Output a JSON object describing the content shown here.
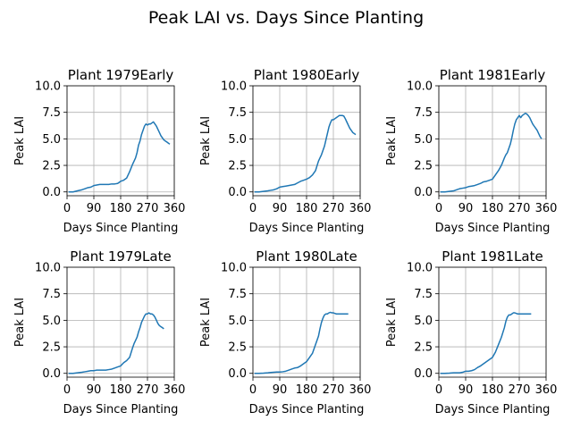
{
  "figure_title": "Peak LAI vs. Days Since Planting",
  "colors": {
    "series": "#1f77b4",
    "grid": "#b0b0b0"
  },
  "chart_data": [
    {
      "type": "line",
      "title": "Plant 1979Early",
      "xlabel": "Days Since Planting",
      "ylabel": "Peak LAI",
      "xlim": [
        0,
        360
      ],
      "ylim": [
        0,
        10
      ],
      "grid": true,
      "xticks": [
        "0",
        "90",
        "180",
        "270",
        "360"
      ],
      "yticks": [
        "0.0",
        "2.5",
        "5.0",
        "7.5",
        "10.0"
      ],
      "series": [
        {
          "x": [
            5,
            20,
            35,
            50,
            60,
            70,
            80,
            90,
            100,
            110,
            120,
            130,
            140,
            150,
            160,
            170,
            180,
            190,
            200,
            210,
            220,
            225,
            230,
            235,
            240,
            245,
            250,
            255,
            260,
            265,
            270,
            275,
            280,
            285,
            290,
            295,
            300,
            305,
            310,
            315,
            320,
            325,
            330,
            335,
            340,
            345
          ],
          "y": [
            0.0,
            0.0,
            0.1,
            0.2,
            0.3,
            0.4,
            0.45,
            0.6,
            0.65,
            0.7,
            0.7,
            0.7,
            0.7,
            0.75,
            0.75,
            0.8,
            1.0,
            1.1,
            1.3,
            1.9,
            2.6,
            2.9,
            3.2,
            3.7,
            4.4,
            4.8,
            5.4,
            5.8,
            6.2,
            6.4,
            6.3,
            6.4,
            6.4,
            6.5,
            6.6,
            6.4,
            6.2,
            5.9,
            5.6,
            5.3,
            5.1,
            4.9,
            4.8,
            4.7,
            4.6,
            4.5
          ]
        }
      ]
    },
    {
      "type": "line",
      "title": "Plant 1980Early",
      "xlabel": "Days Since Planting",
      "ylabel": "Peak LAI",
      "xlim": [
        0,
        360
      ],
      "ylim": [
        0,
        10
      ],
      "grid": true,
      "xticks": [
        "0",
        "90",
        "180",
        "270",
        "360"
      ],
      "yticks": [
        "0.0",
        "2.5",
        "5.0",
        "7.5",
        "10.0"
      ],
      "series": [
        {
          "x": [
            5,
            20,
            35,
            50,
            60,
            70,
            80,
            90,
            100,
            110,
            120,
            130,
            140,
            150,
            160,
            170,
            180,
            190,
            200,
            210,
            220,
            225,
            230,
            235,
            240,
            245,
            250,
            255,
            260,
            265,
            270,
            275,
            280,
            285,
            290,
            295,
            300,
            305,
            310,
            315,
            320,
            325,
            330,
            335,
            340,
            345
          ],
          "y": [
            0.0,
            0.0,
            0.05,
            0.1,
            0.15,
            0.2,
            0.3,
            0.45,
            0.5,
            0.55,
            0.6,
            0.65,
            0.7,
            0.85,
            1.0,
            1.1,
            1.2,
            1.35,
            1.6,
            2.0,
            2.9,
            3.2,
            3.5,
            3.9,
            4.3,
            4.9,
            5.5,
            6.1,
            6.5,
            6.8,
            6.8,
            6.9,
            7.0,
            7.1,
            7.2,
            7.2,
            7.2,
            7.15,
            6.9,
            6.6,
            6.3,
            6.0,
            5.8,
            5.6,
            5.5,
            5.4
          ]
        }
      ]
    },
    {
      "type": "line",
      "title": "Plant 1981Early",
      "xlabel": "Days Since Planting",
      "ylabel": "Peak LAI",
      "xlim": [
        0,
        360
      ],
      "ylim": [
        0,
        10
      ],
      "grid": true,
      "xticks": [
        "0",
        "90",
        "180",
        "270",
        "360"
      ],
      "yticks": [
        "0.0",
        "2.5",
        "5.0",
        "7.5",
        "10.0"
      ],
      "series": [
        {
          "x": [
            5,
            20,
            35,
            50,
            60,
            70,
            80,
            90,
            100,
            110,
            120,
            130,
            140,
            150,
            160,
            170,
            180,
            190,
            200,
            210,
            220,
            225,
            230,
            235,
            240,
            245,
            250,
            255,
            260,
            265,
            270,
            275,
            280,
            285,
            290,
            295,
            300,
            305,
            310,
            315,
            320,
            325,
            330,
            335,
            340,
            345
          ],
          "y": [
            0.0,
            0.0,
            0.05,
            0.1,
            0.2,
            0.3,
            0.35,
            0.4,
            0.5,
            0.55,
            0.6,
            0.7,
            0.8,
            0.95,
            1.0,
            1.1,
            1.2,
            1.6,
            2.0,
            2.5,
            3.2,
            3.5,
            3.7,
            4.1,
            4.5,
            5.1,
            5.8,
            6.4,
            6.8,
            7.0,
            7.2,
            7.0,
            7.2,
            7.3,
            7.4,
            7.35,
            7.2,
            7.0,
            6.7,
            6.4,
            6.2,
            6.0,
            5.8,
            5.5,
            5.2,
            5.0
          ]
        }
      ]
    },
    {
      "type": "line",
      "title": "Plant 1979Late",
      "xlabel": "Days Since Planting",
      "ylabel": "Peak LAI",
      "xlim": [
        0,
        360
      ],
      "ylim": [
        0,
        10
      ],
      "grid": true,
      "xticks": [
        "0",
        "90",
        "180",
        "270",
        "360"
      ],
      "yticks": [
        "0.0",
        "2.5",
        "5.0",
        "7.5",
        "10.0"
      ],
      "series": [
        {
          "x": [
            5,
            20,
            35,
            50,
            60,
            70,
            80,
            90,
            100,
            110,
            120,
            130,
            140,
            150,
            160,
            170,
            180,
            190,
            200,
            210,
            220,
            225,
            230,
            235,
            240,
            245,
            250,
            255,
            260,
            265,
            270,
            275,
            280,
            285,
            290,
            295,
            300,
            305,
            310,
            315,
            320,
            325
          ],
          "y": [
            0.0,
            0.0,
            0.05,
            0.1,
            0.15,
            0.2,
            0.25,
            0.25,
            0.3,
            0.3,
            0.3,
            0.3,
            0.35,
            0.4,
            0.5,
            0.6,
            0.7,
            1.0,
            1.2,
            1.5,
            2.4,
            2.8,
            3.1,
            3.4,
            3.9,
            4.3,
            4.8,
            5.1,
            5.4,
            5.6,
            5.6,
            5.7,
            5.6,
            5.6,
            5.5,
            5.3,
            5.0,
            4.7,
            4.5,
            4.4,
            4.3,
            4.2
          ]
        }
      ]
    },
    {
      "type": "line",
      "title": "Plant 1980Late",
      "xlabel": "Days Since Planting",
      "ylabel": "Peak LAI",
      "xlim": [
        0,
        360
      ],
      "ylim": [
        0,
        10
      ],
      "grid": true,
      "xticks": [
        "0",
        "90",
        "180",
        "270",
        "360"
      ],
      "yticks": [
        "0.0",
        "2.5",
        "5.0",
        "7.5",
        "10.0"
      ],
      "series": [
        {
          "x": [
            5,
            20,
            35,
            50,
            60,
            70,
            80,
            90,
            100,
            110,
            120,
            130,
            140,
            150,
            160,
            170,
            180,
            190,
            200,
            210,
            220,
            225,
            230,
            235,
            240,
            245,
            250,
            255,
            260,
            265,
            270,
            275,
            280,
            285,
            290,
            295,
            300,
            305,
            310,
            315,
            320
          ],
          "y": [
            0.0,
            0.0,
            0.02,
            0.05,
            0.08,
            0.1,
            0.12,
            0.12,
            0.15,
            0.2,
            0.3,
            0.4,
            0.5,
            0.55,
            0.7,
            0.9,
            1.1,
            1.5,
            1.9,
            2.7,
            3.5,
            4.2,
            4.8,
            5.2,
            5.5,
            5.6,
            5.6,
            5.7,
            5.75,
            5.7,
            5.7,
            5.65,
            5.6,
            5.6,
            5.6,
            5.6,
            5.6,
            5.6,
            5.6,
            5.6,
            5.6
          ]
        }
      ]
    },
    {
      "type": "line",
      "title": "Plant 1981Late",
      "xlabel": "Days Since Planting",
      "ylabel": "Peak LAI",
      "xlim": [
        0,
        360
      ],
      "ylim": [
        0,
        10
      ],
      "grid": true,
      "xticks": [
        "0",
        "90",
        "180",
        "270",
        "360"
      ],
      "yticks": [
        "0.0",
        "2.5",
        "5.0",
        "7.5",
        "10.0"
      ],
      "series": [
        {
          "x": [
            5,
            20,
            35,
            50,
            60,
            70,
            80,
            90,
            100,
            110,
            120,
            130,
            140,
            150,
            160,
            170,
            180,
            190,
            200,
            210,
            220,
            225,
            230,
            235,
            240,
            245,
            250,
            255,
            260,
            265,
            270,
            275,
            280,
            285,
            290,
            295,
            300,
            305,
            310
          ],
          "y": [
            0.0,
            0.0,
            0.02,
            0.05,
            0.05,
            0.05,
            0.1,
            0.2,
            0.2,
            0.25,
            0.35,
            0.55,
            0.7,
            0.9,
            1.1,
            1.3,
            1.5,
            2.0,
            2.7,
            3.4,
            4.3,
            4.9,
            5.3,
            5.5,
            5.5,
            5.6,
            5.7,
            5.7,
            5.65,
            5.6,
            5.6,
            5.6,
            5.6,
            5.6,
            5.6,
            5.6,
            5.6,
            5.6,
            5.6
          ]
        }
      ]
    }
  ]
}
